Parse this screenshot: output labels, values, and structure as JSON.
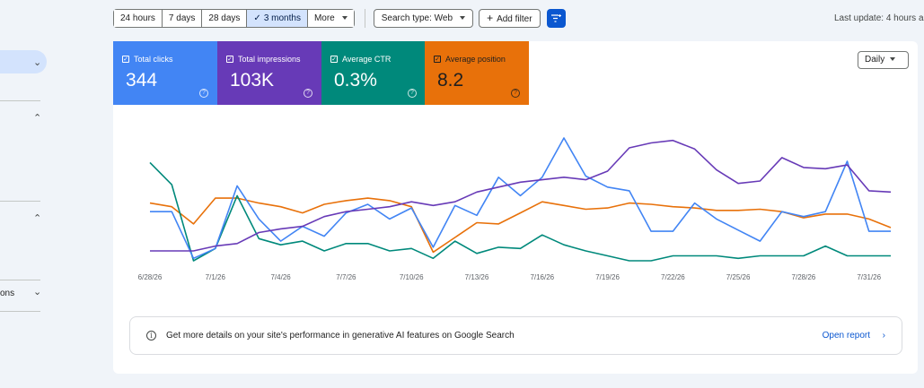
{
  "toolbar": {
    "date_ranges": [
      {
        "label": "24 hours",
        "active": false
      },
      {
        "label": "7 days",
        "active": false
      },
      {
        "label": "28 days",
        "active": false
      },
      {
        "label": "3 months",
        "active": true
      }
    ],
    "more_label": "More",
    "search_type_label": "Search type: Web",
    "add_filter_label": "Add filter",
    "last_update": "Last update: 4 hours a"
  },
  "sidebar": {
    "partial_label": "ons"
  },
  "metrics": [
    {
      "label": "Total clicks",
      "value": "344",
      "color": "#4285f4"
    },
    {
      "label": "Total impressions",
      "value": "103K",
      "color": "#673ab7"
    },
    {
      "label": "Average CTR",
      "value": "0.3%",
      "color": "#00897b"
    },
    {
      "label": "Average position",
      "value": "8.2",
      "color": "#e8710a"
    }
  ],
  "granularity_label": "Daily",
  "chart_data": {
    "type": "line",
    "x": [
      "6/28/26",
      "6/29/26",
      "6/30/26",
      "7/1/26",
      "7/2/26",
      "7/3/26",
      "7/4/26",
      "7/5/26",
      "7/6/26",
      "7/7/26",
      "7/8/26",
      "7/9/26",
      "7/10/26",
      "7/11/26",
      "7/12/26",
      "7/13/26",
      "7/14/26",
      "7/15/26",
      "7/16/26",
      "7/17/26",
      "7/18/26",
      "7/19/26",
      "7/20/26",
      "7/21/26",
      "7/22/26",
      "7/23/26",
      "7/24/26",
      "7/25/26",
      "7/26/26",
      "7/27/26",
      "7/28/26",
      "7/29/26",
      "7/30/26",
      "7/31/26",
      "8/1/26"
    ],
    "x_tick_labels": [
      "6/28/26",
      "7/1/26",
      "7/4/26",
      "7/7/26",
      "7/10/26",
      "7/13/26",
      "7/16/26",
      "7/19/26",
      "7/22/26",
      "7/25/26",
      "7/28/26",
      "7/31/26"
    ],
    "y_axes_visible": false,
    "grid": false,
    "legend": "metric tiles above chart",
    "series": [
      {
        "name": "Total clicks",
        "color": "#4285f4",
        "values": [
          0.4,
          0.4,
          0.02,
          0.1,
          0.61,
          0.34,
          0.16,
          0.28,
          0.2,
          0.39,
          0.46,
          0.34,
          0.43,
          0.11,
          0.45,
          0.37,
          0.68,
          0.53,
          0.68,
          1.0,
          0.69,
          0.6,
          0.57,
          0.24,
          0.24,
          0.47,
          0.34,
          0.25,
          0.16,
          0.4,
          0.36,
          0.4,
          0.81,
          0.24,
          0.24
        ]
      },
      {
        "name": "Total impressions",
        "color": "#673ab7",
        "values": [
          0.08,
          0.08,
          0.08,
          0.12,
          0.14,
          0.23,
          0.26,
          0.28,
          0.36,
          0.4,
          0.42,
          0.44,
          0.48,
          0.45,
          0.48,
          0.56,
          0.6,
          0.64,
          0.66,
          0.68,
          0.66,
          0.73,
          0.92,
          0.96,
          0.98,
          0.91,
          0.74,
          0.63,
          0.65,
          0.84,
          0.76,
          0.75,
          0.78,
          0.57,
          0.56
        ]
      },
      {
        "name": "Average CTR",
        "color": "#00897b",
        "values": [
          0.8,
          0.62,
          0.0,
          0.1,
          0.53,
          0.18,
          0.13,
          0.16,
          0.08,
          0.14,
          0.14,
          0.08,
          0.1,
          0.02,
          0.16,
          0.06,
          0.11,
          0.1,
          0.21,
          0.13,
          0.08,
          0.04,
          0.0,
          0.0,
          0.04,
          0.04,
          0.04,
          0.02,
          0.04,
          0.04,
          0.04,
          0.12,
          0.04,
          0.04,
          0.04
        ]
      },
      {
        "name": "Average position",
        "color": "#e8710a",
        "values": [
          0.47,
          0.44,
          0.3,
          0.51,
          0.51,
          0.47,
          0.44,
          0.39,
          0.46,
          0.49,
          0.51,
          0.49,
          0.44,
          0.07,
          0.19,
          0.31,
          0.3,
          0.39,
          0.48,
          0.45,
          0.42,
          0.43,
          0.47,
          0.46,
          0.44,
          0.43,
          0.41,
          0.41,
          0.42,
          0.4,
          0.35,
          0.38,
          0.38,
          0.34,
          0.27
        ]
      }
    ]
  },
  "banner": {
    "message": "Get more details on your site's performance in generative AI features on Google Search",
    "link_label": "Open report"
  }
}
